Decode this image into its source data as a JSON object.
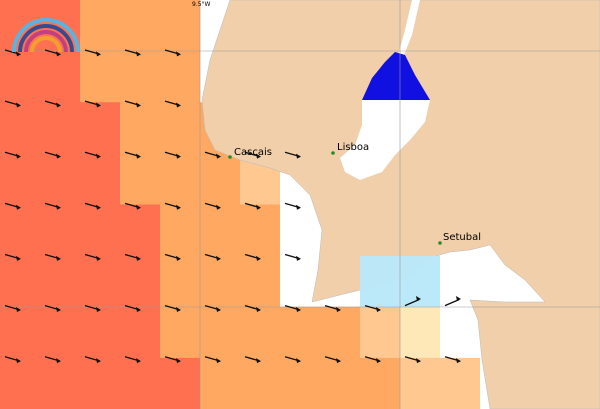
{
  "header": {
    "longitude_label": "9.5°W"
  },
  "places": [
    {
      "label": "Cascais"
    },
    {
      "label": "Lisboa"
    },
    {
      "label": "Setubal"
    }
  ]
}
